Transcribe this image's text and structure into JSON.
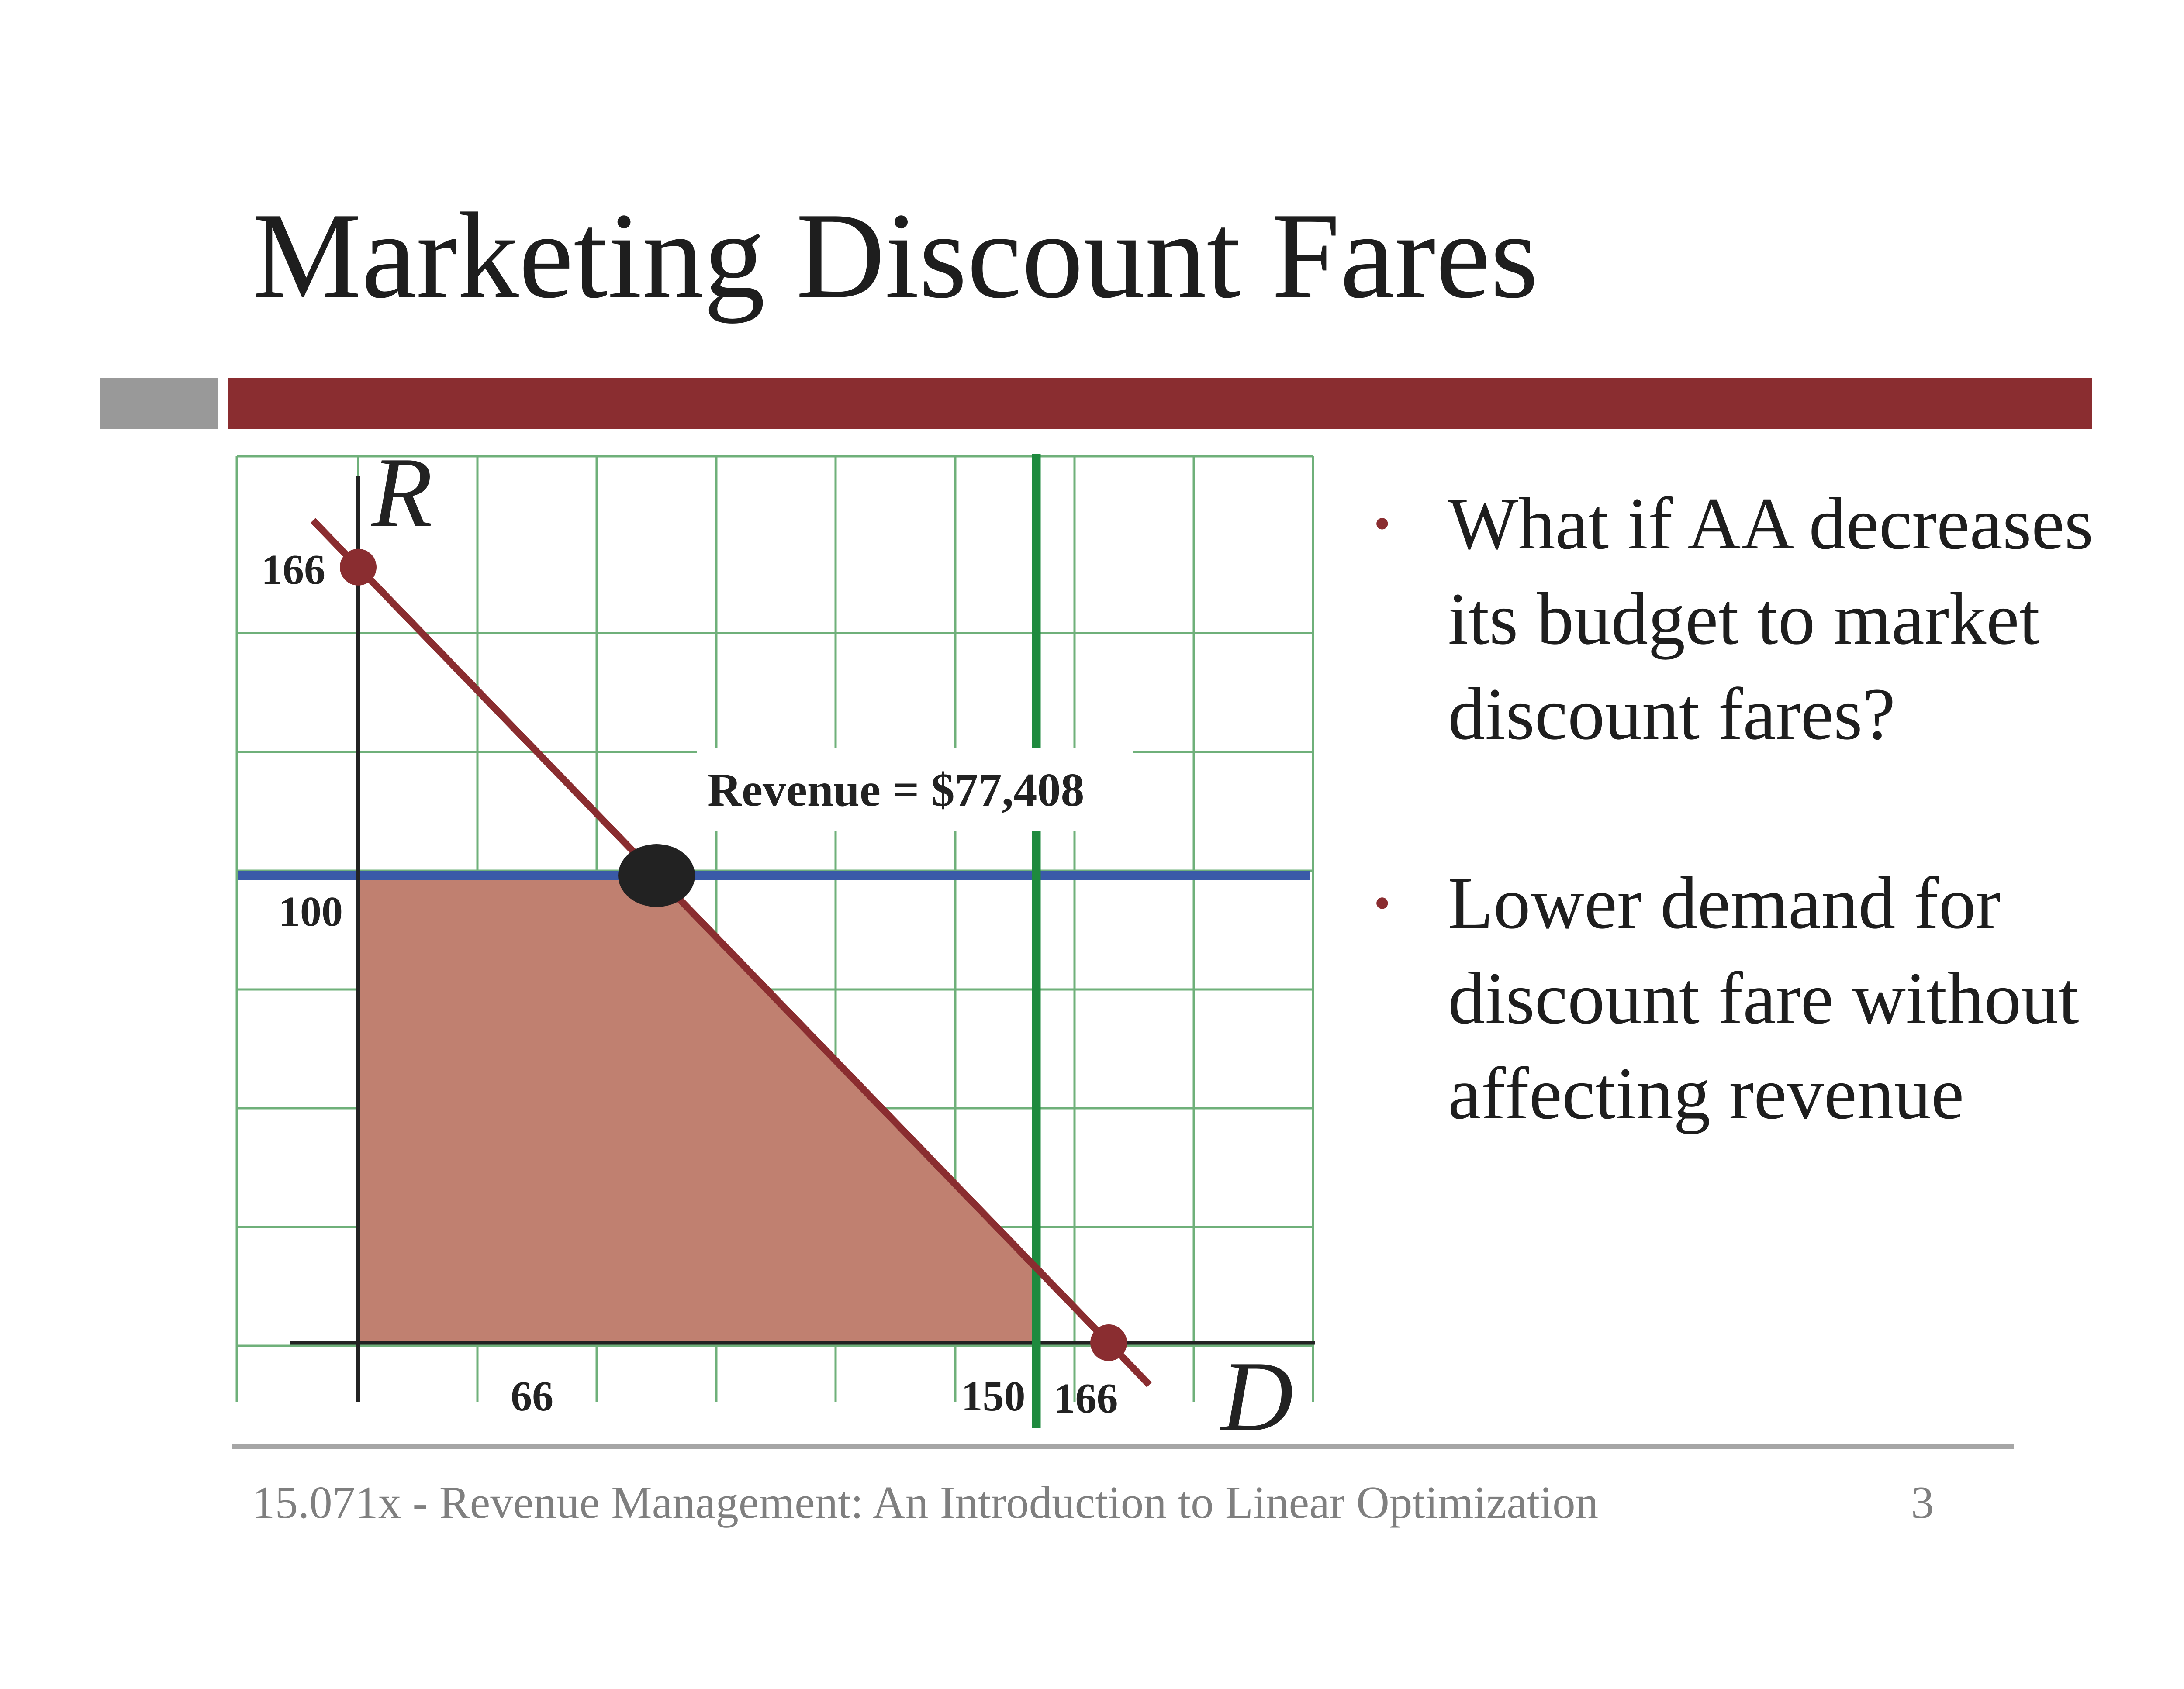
{
  "slide": {
    "title": "Marketing Discount Fares",
    "bullets": [
      "What if AA decreases its budget to market discount fares?",
      "Lower demand for discount fare without affecting revenue"
    ],
    "footer": "15.071x - Revenue Management: An Introduction to Linear Optimization",
    "page_number": "3"
  },
  "colors": {
    "accent_bar": "#8a2d30",
    "side_bar": "#999999",
    "grid": "#6fb07a",
    "budget_line": "#8a2d30",
    "demand_line": "#3a5aa8",
    "capacity_line": "#1e8a3e",
    "feasible_region": "#c08070",
    "optimum_point": "#222222"
  },
  "diagram": {
    "axis_x_label": "D",
    "axis_y_label": "R",
    "tick_labels": {
      "y_intercept": "166",
      "y_demand": "100",
      "x_optimum": "66",
      "x_capacity": "150",
      "x_intercept": "166"
    },
    "values": {
      "budget_intercept": 166,
      "regular_demand": 100,
      "optimum_d": 66,
      "discount_capacity": 150
    },
    "annotation": "Revenue = $77,408"
  }
}
